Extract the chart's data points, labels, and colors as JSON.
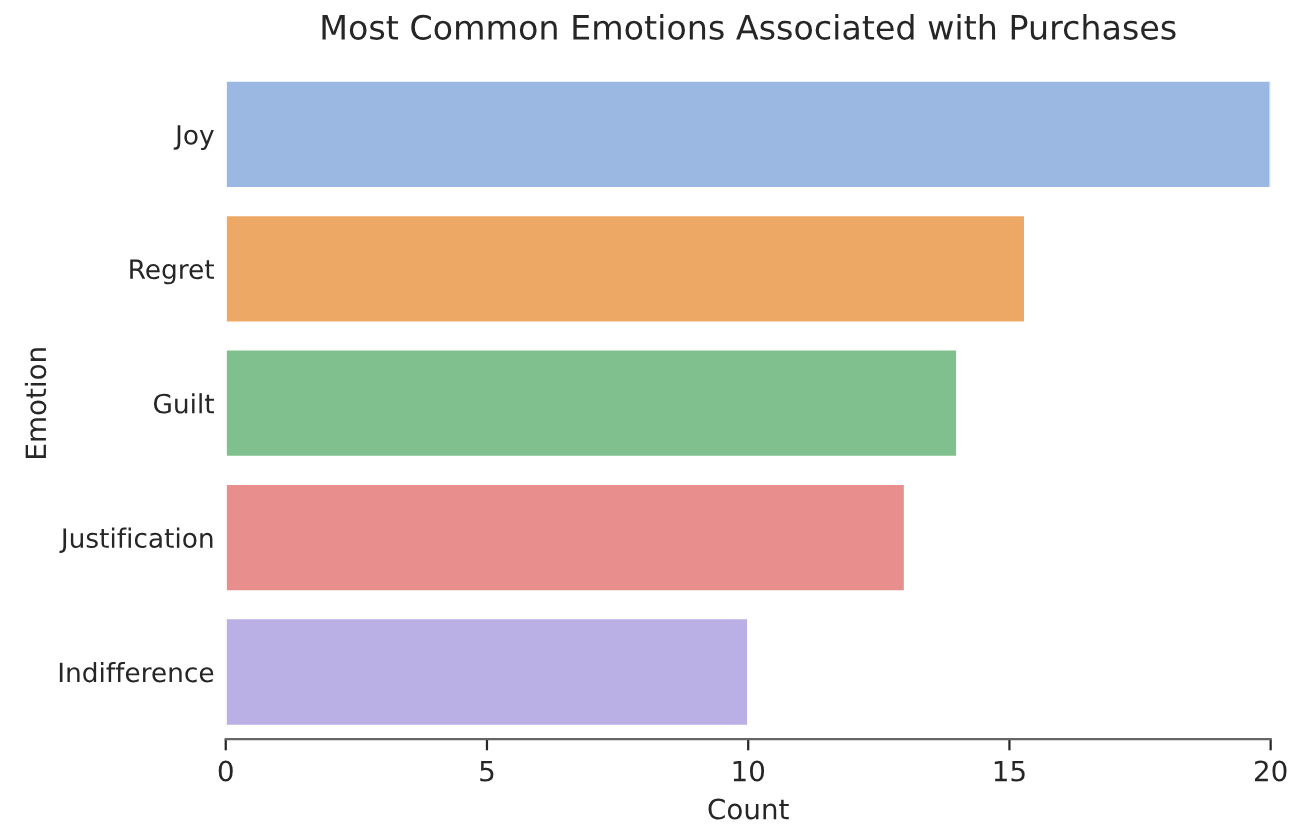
{
  "chart_data": {
    "type": "bar",
    "orientation": "horizontal",
    "title": "Most Common Emotions Associated with Purchases",
    "xlabel": "Count",
    "ylabel": "Emotion",
    "categories": [
      "Joy",
      "Regret",
      "Guilt",
      "Justification",
      "Indifference"
    ],
    "values": [
      20,
      15.3,
      14,
      13,
      10
    ],
    "colors": [
      "#9ab8e2",
      "#eea866",
      "#80c08e",
      "#e88e8c",
      "#bab0e6"
    ],
    "xlim": [
      0,
      20
    ],
    "xticks": [
      0,
      5,
      10,
      15,
      20
    ],
    "grid": false,
    "legend": false
  }
}
